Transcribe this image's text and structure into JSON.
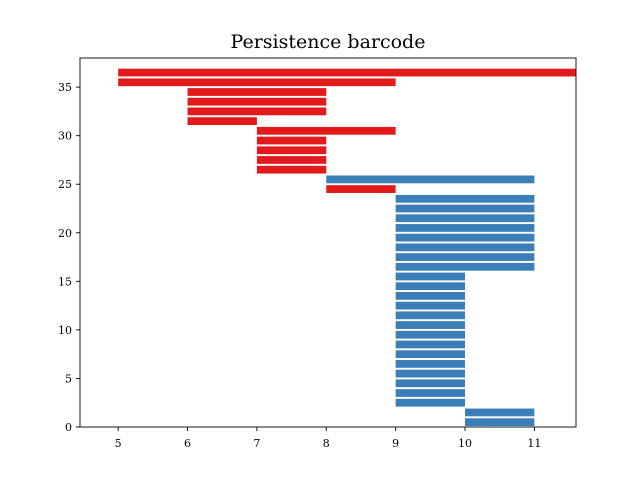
{
  "chart_data": {
    "type": "bar",
    "orientation": "horizontal",
    "title": "Persistence barcode",
    "xlabel": "",
    "ylabel": "",
    "xlim": [
      4.45,
      11.6
    ],
    "ylim": [
      0,
      38
    ],
    "xticks": [
      5,
      6,
      7,
      8,
      9,
      10,
      11
    ],
    "yticks": [
      0,
      5,
      10,
      15,
      20,
      25,
      30,
      35
    ],
    "grid": false,
    "legend": "none",
    "colors": {
      "dimension_0": "#3a7fb7",
      "dimension_1": "#e31a1c"
    },
    "bars": [
      {
        "y": 0,
        "start": 10,
        "end": 11,
        "color": "#3a7fb7"
      },
      {
        "y": 1,
        "start": 10,
        "end": 11,
        "color": "#3a7fb7"
      },
      {
        "y": 2,
        "start": 9,
        "end": 10,
        "color": "#3a7fb7"
      },
      {
        "y": 3,
        "start": 9,
        "end": 10,
        "color": "#3a7fb7"
      },
      {
        "y": 4,
        "start": 9,
        "end": 10,
        "color": "#3a7fb7"
      },
      {
        "y": 5,
        "start": 9,
        "end": 10,
        "color": "#3a7fb7"
      },
      {
        "y": 6,
        "start": 9,
        "end": 10,
        "color": "#3a7fb7"
      },
      {
        "y": 7,
        "start": 9,
        "end": 10,
        "color": "#3a7fb7"
      },
      {
        "y": 8,
        "start": 9,
        "end": 10,
        "color": "#3a7fb7"
      },
      {
        "y": 9,
        "start": 9,
        "end": 10,
        "color": "#3a7fb7"
      },
      {
        "y": 10,
        "start": 9,
        "end": 10,
        "color": "#3a7fb7"
      },
      {
        "y": 11,
        "start": 9,
        "end": 10,
        "color": "#3a7fb7"
      },
      {
        "y": 12,
        "start": 9,
        "end": 10,
        "color": "#3a7fb7"
      },
      {
        "y": 13,
        "start": 9,
        "end": 10,
        "color": "#3a7fb7"
      },
      {
        "y": 14,
        "start": 9,
        "end": 10,
        "color": "#3a7fb7"
      },
      {
        "y": 15,
        "start": 9,
        "end": 10,
        "color": "#3a7fb7"
      },
      {
        "y": 16,
        "start": 9,
        "end": 11,
        "color": "#3a7fb7"
      },
      {
        "y": 17,
        "start": 9,
        "end": 11,
        "color": "#3a7fb7"
      },
      {
        "y": 18,
        "start": 9,
        "end": 11,
        "color": "#3a7fb7"
      },
      {
        "y": 19,
        "start": 9,
        "end": 11,
        "color": "#3a7fb7"
      },
      {
        "y": 20,
        "start": 9,
        "end": 11,
        "color": "#3a7fb7"
      },
      {
        "y": 21,
        "start": 9,
        "end": 11,
        "color": "#3a7fb7"
      },
      {
        "y": 22,
        "start": 9,
        "end": 11,
        "color": "#3a7fb7"
      },
      {
        "y": 23,
        "start": 9,
        "end": 11,
        "color": "#3a7fb7"
      },
      {
        "y": 24,
        "start": 8,
        "end": 9,
        "color": "#e31a1c"
      },
      {
        "y": 25,
        "start": 8,
        "end": 11,
        "color": "#3a7fb7"
      },
      {
        "y": 26,
        "start": 7,
        "end": 8,
        "color": "#e31a1c"
      },
      {
        "y": 27,
        "start": 7,
        "end": 8,
        "color": "#e31a1c"
      },
      {
        "y": 28,
        "start": 7,
        "end": 8,
        "color": "#e31a1c"
      },
      {
        "y": 29,
        "start": 7,
        "end": 8,
        "color": "#e31a1c"
      },
      {
        "y": 30,
        "start": 7,
        "end": 9,
        "color": "#e31a1c"
      },
      {
        "y": 31,
        "start": 6,
        "end": 7,
        "color": "#e31a1c"
      },
      {
        "y": 32,
        "start": 6,
        "end": 8,
        "color": "#e31a1c"
      },
      {
        "y": 33,
        "start": 6,
        "end": 8,
        "color": "#e31a1c"
      },
      {
        "y": 34,
        "start": 6,
        "end": 8,
        "color": "#e31a1c"
      },
      {
        "y": 35,
        "start": 5,
        "end": 9,
        "color": "#e31a1c"
      },
      {
        "y": 36,
        "start": 5,
        "end": 11.6,
        "color": "#e31a1c"
      }
    ]
  }
}
